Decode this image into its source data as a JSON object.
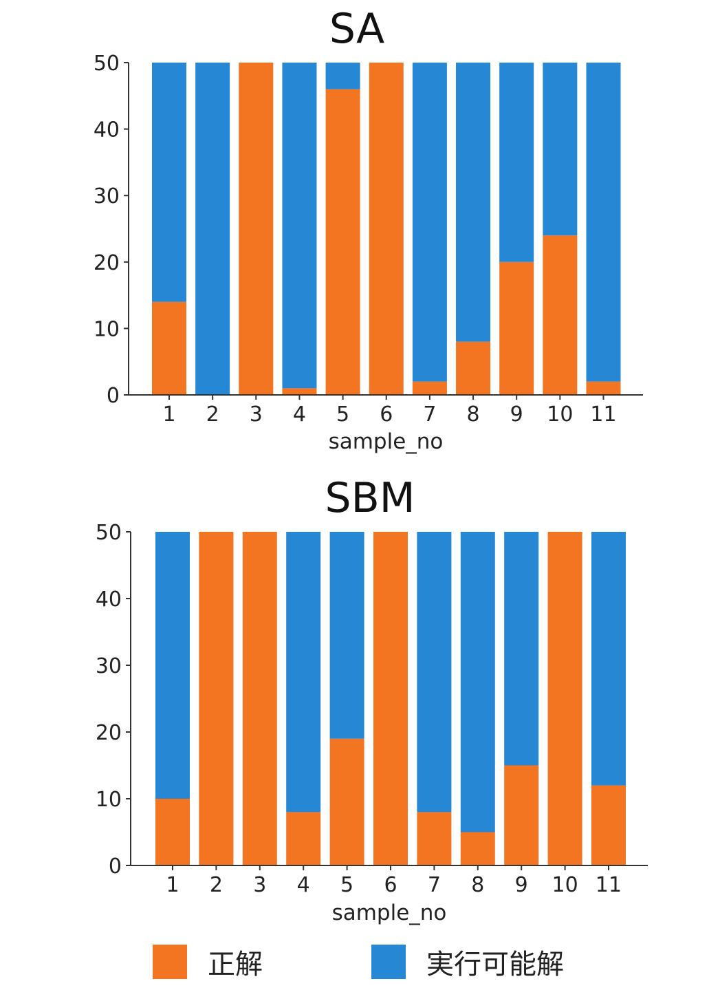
{
  "colors": {
    "correct": "#f37521",
    "feasible": "#2687d4"
  },
  "legend": {
    "correct_label": "正解",
    "feasible_label": "実行可能解"
  },
  "chart_data": [
    {
      "type": "bar",
      "stacked": true,
      "title": "SA",
      "xlabel": "sample_no",
      "ylabel": "",
      "ylim": [
        0,
        50
      ],
      "yticks": [
        0,
        10,
        20,
        30,
        40,
        50
      ],
      "categories": [
        "1",
        "2",
        "3",
        "4",
        "5",
        "6",
        "7",
        "8",
        "9",
        "10",
        "11"
      ],
      "series": [
        {
          "name": "正解",
          "values": [
            14,
            0,
            50,
            1,
            46,
            50,
            2,
            8,
            20,
            24,
            2
          ]
        },
        {
          "name": "実行可能解",
          "values": [
            36,
            50,
            0,
            49,
            4,
            0,
            48,
            42,
            30,
            26,
            48
          ]
        }
      ],
      "grid": false,
      "legend_position": "bottom"
    },
    {
      "type": "bar",
      "stacked": true,
      "title": "SBM",
      "xlabel": "sample_no",
      "ylabel": "",
      "ylim": [
        0,
        50
      ],
      "yticks": [
        0,
        10,
        20,
        30,
        40,
        50
      ],
      "categories": [
        "1",
        "2",
        "3",
        "4",
        "5",
        "6",
        "7",
        "8",
        "9",
        "10",
        "11"
      ],
      "series": [
        {
          "name": "正解",
          "values": [
            10,
            50,
            50,
            8,
            19,
            50,
            8,
            5,
            15,
            50,
            12
          ]
        },
        {
          "name": "実行可能解",
          "values": [
            40,
            0,
            0,
            42,
            31,
            0,
            42,
            45,
            35,
            0,
            38
          ]
        }
      ],
      "grid": false,
      "legend_position": "bottom"
    }
  ]
}
